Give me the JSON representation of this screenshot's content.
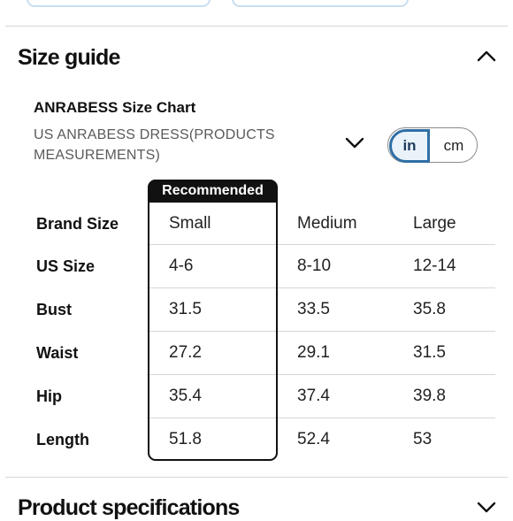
{
  "size_guide": {
    "title": "Size guide",
    "chart_name": "ANRABESS Size Chart",
    "chart_subtitle": "US ANRABESS DRESS(PRODUCTS MEASUREMENTS)",
    "units": {
      "in": "in",
      "cm": "cm",
      "selected": "in"
    },
    "recommended_label": "Recommended",
    "rows": [
      {
        "label": "Brand Size",
        "values": [
          "Small",
          "Medium",
          "Large"
        ]
      },
      {
        "label": "US Size",
        "values": [
          "4-6",
          "8-10",
          "12-14"
        ]
      },
      {
        "label": "Bust",
        "values": [
          "31.5",
          "33.5",
          "35.8"
        ]
      },
      {
        "label": "Waist",
        "values": [
          "27.2",
          "29.1",
          "31.5"
        ]
      },
      {
        "label": "Hip",
        "values": [
          "35.4",
          "37.4",
          "39.8"
        ]
      },
      {
        "label": "Length",
        "values": [
          "51.8",
          "52.4",
          "53"
        ]
      }
    ]
  },
  "product_specifications": {
    "title": "Product specifications"
  },
  "icons": {
    "collapse": "chevron-up-icon",
    "dropdown": "chevron-down-icon",
    "expand": "chevron-down-icon"
  },
  "colors": {
    "accent": "#2f6fa5",
    "selected_bg": "#eaf2fa",
    "recommended": "#111111",
    "divider": "#d6d6d6"
  }
}
